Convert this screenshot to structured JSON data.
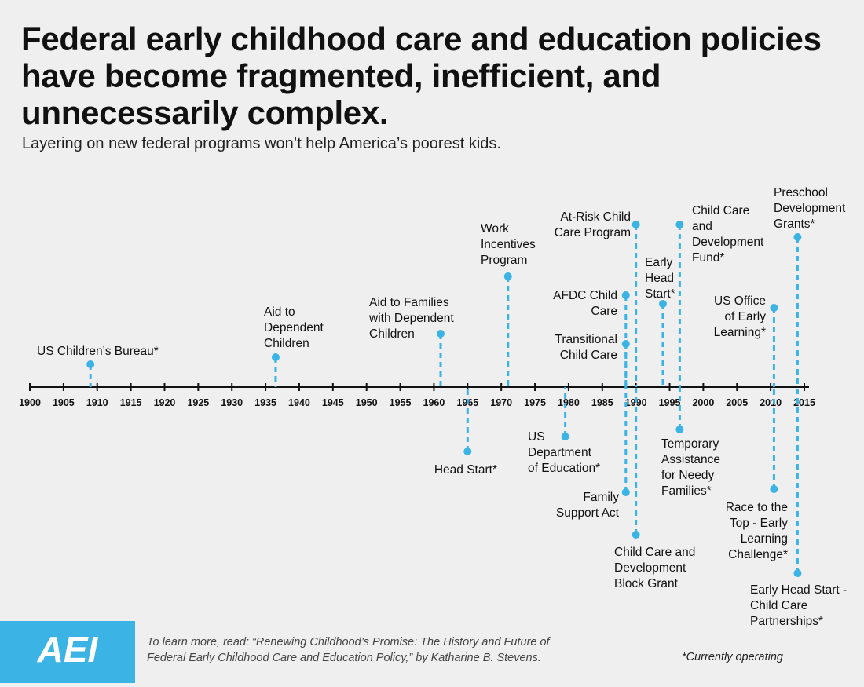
{
  "header": {
    "title": "Federal early childhood care and education policies have become fragmented, inefficient, and unnecessarily complex.",
    "subtitle": "Layering on new federal programs won’t help America’s poorest kids."
  },
  "colors": {
    "accent": "#3bb4e5",
    "axis": "#111111",
    "background": "#efefef"
  },
  "chart_data": {
    "type": "timeline",
    "axis": {
      "min": 1900,
      "max": 2015,
      "step": 5,
      "ticks": [
        "1900",
        "1905",
        "1910",
        "1915",
        "1920",
        "1925",
        "1930",
        "1935",
        "1940",
        "1945",
        "1950",
        "1955",
        "1960",
        "1965",
        "1970",
        "1975",
        "1980",
        "1985",
        "1990",
        "1995",
        "2000",
        "2005",
        "2010",
        "2015"
      ]
    },
    "events": [
      {
        "year": 1909,
        "side": "above",
        "label": [
          "US Children’s Bureau*"
        ]
      },
      {
        "year": 1936.5,
        "side": "above",
        "label": [
          "Aid to",
          "Dependent",
          "Children"
        ]
      },
      {
        "year": 1961,
        "side": "above",
        "label": [
          "Aid to Families",
          "with Dependent",
          "Children"
        ]
      },
      {
        "year": 1965,
        "side": "below",
        "label": [
          "Head Start*"
        ]
      },
      {
        "year": 1971,
        "side": "above",
        "label": [
          "Work",
          "Incentives",
          "Program"
        ]
      },
      {
        "year": 1979.5,
        "side": "below",
        "label": [
          "US",
          "Department",
          "of Education*"
        ]
      },
      {
        "year": 1988.5,
        "side": "above",
        "label": [
          "Transitional",
          "Child Care"
        ]
      },
      {
        "year": 1988.5,
        "side": "above",
        "label": [
          "AFDC Child",
          "Care"
        ]
      },
      {
        "year": 1988.5,
        "side": "below",
        "label": [
          "Family",
          "Support Act"
        ]
      },
      {
        "year": 1990,
        "side": "above",
        "label": [
          "At-Risk Child",
          "Care Program"
        ]
      },
      {
        "year": 1990,
        "side": "below",
        "label": [
          "Child Care and",
          "Development",
          "Block Grant"
        ]
      },
      {
        "year": 1994,
        "side": "above",
        "label": [
          "Early",
          "Head",
          "Start*"
        ]
      },
      {
        "year": 1996.5,
        "side": "above",
        "label": [
          "Child Care",
          "and",
          "Development",
          "Fund*"
        ]
      },
      {
        "year": 1996.5,
        "side": "below",
        "label": [
          "Temporary",
          "Assistance",
          "for Needy",
          "Families*"
        ]
      },
      {
        "year": 2010.5,
        "side": "above",
        "label": [
          "US Office",
          "of Early",
          "Learning*"
        ]
      },
      {
        "year": 2010.5,
        "side": "below",
        "label": [
          "Race to the",
          "Top - Early",
          "Learning",
          "Challenge*"
        ]
      },
      {
        "year": 2014,
        "side": "above",
        "label": [
          "Preschool",
          "Development",
          "Grants*"
        ]
      },
      {
        "year": 2014,
        "side": "below",
        "label": [
          "Early Head Start -",
          "Child Care",
          "Partnerships*"
        ]
      }
    ]
  },
  "footer": {
    "logo_text": "AEI",
    "note_line1": "To learn more, read: “Renewing Childhood’s Promise: The History and Future of",
    "note_line2": "Federal Early Childhood Care and Education Policy,” by Katharine B. Stevens.",
    "footnote": "*Currently operating"
  }
}
